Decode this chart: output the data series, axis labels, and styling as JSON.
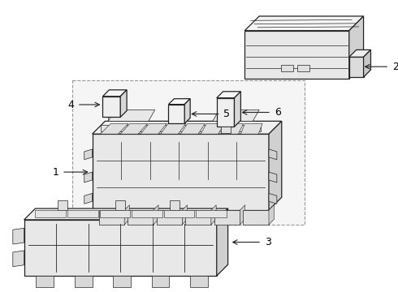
{
  "bg_color": "#ffffff",
  "lc": "#222222",
  "lc_thin": "#444444",
  "fill_white": "#ffffff",
  "fill_light": "#f0f0f0",
  "fill_mid": "#e0e0e0",
  "fill_gray": "#d0d0d0",
  "fill_dark": "#b8b8b8",
  "box_fill": "#eeeeee",
  "box_border": "#999999",
  "lw_main": 0.9,
  "lw_thin": 0.5,
  "font_size": 9
}
